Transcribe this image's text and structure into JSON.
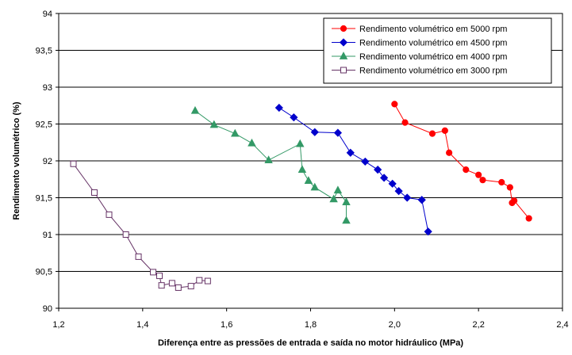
{
  "chart_data": {
    "type": "scatter",
    "xlabel": "Diferença entre as pressões de entrada e saída no motor hidráulico (MPa)",
    "ylabel": "Rendimento volumétrico (%)",
    "xlim": [
      1.2,
      2.4
    ],
    "ylim": [
      90,
      94
    ],
    "xticks": [
      "1,2",
      "1,4",
      "1,6",
      "1,8",
      "2,0",
      "2,2",
      "2,4"
    ],
    "yticks": [
      "90",
      "90,5",
      "91",
      "91,5",
      "92",
      "92,5",
      "93",
      "93,5",
      "94"
    ],
    "grid": "horizontal",
    "legend_position": "top-right",
    "series": [
      {
        "name": "Rendimento volumétrico em 5000 rpm",
        "color": "#ff0000",
        "marker": "circle",
        "x": [
          2.0,
          2.025,
          2.09,
          2.12,
          2.13,
          2.17,
          2.2,
          2.21,
          2.255,
          2.275,
          2.28,
          2.285,
          2.32
        ],
        "y": [
          92.77,
          92.52,
          92.37,
          92.41,
          92.11,
          91.88,
          91.81,
          91.74,
          91.71,
          91.64,
          91.43,
          91.46,
          91.22
        ]
      },
      {
        "name": "Rendimento volumétrico em 4500 rpm",
        "color": "#0000cc",
        "marker": "diamond",
        "x": [
          1.725,
          1.76,
          1.81,
          1.865,
          1.895,
          1.93,
          1.96,
          1.975,
          1.995,
          2.01,
          2.03,
          2.065,
          2.08
        ],
        "y": [
          92.72,
          92.59,
          92.39,
          92.38,
          92.11,
          91.99,
          91.88,
          91.77,
          91.69,
          91.59,
          91.5,
          91.47,
          91.04
        ]
      },
      {
        "name": "Rendimento volumétrico em 4000 rpm",
        "color": "#339966",
        "marker": "triangle",
        "x": [
          1.525,
          1.57,
          1.62,
          1.66,
          1.7,
          1.775,
          1.78,
          1.795,
          1.81,
          1.855,
          1.865,
          1.885,
          1.885
        ],
        "y": [
          92.68,
          92.49,
          92.37,
          92.24,
          92.01,
          92.23,
          91.88,
          91.73,
          91.64,
          91.48,
          91.6,
          91.44,
          91.19
        ]
      },
      {
        "name": "Rendimento volumétrico em 3000 rpm",
        "color": "#663366",
        "marker": "square",
        "x": [
          1.235,
          1.285,
          1.32,
          1.36,
          1.39,
          1.425,
          1.44,
          1.445,
          1.47,
          1.485,
          1.515,
          1.535,
          1.555
        ],
        "y": [
          91.96,
          91.57,
          91.27,
          91.0,
          90.7,
          90.49,
          90.44,
          90.31,
          90.34,
          90.28,
          90.3,
          90.38,
          90.37
        ]
      }
    ]
  }
}
